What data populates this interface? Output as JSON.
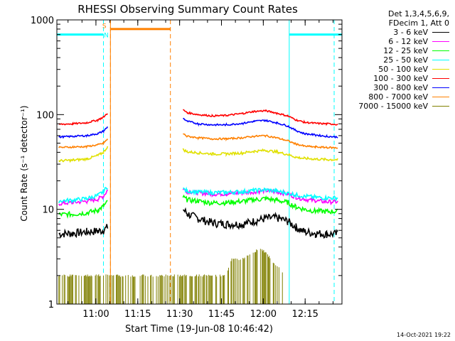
{
  "chart_data": {
    "type": "line",
    "title": "RHESSI Observing Summary Count Rates",
    "xlabel": "Start Time (19-Jun-08 10:46:42)",
    "ylabel": "Count Rate (s⁻¹ detector⁻¹)",
    "yscale": "log",
    "ylim": [
      1,
      1000
    ],
    "xlim_minutes": [
      -0.7,
      101.5
    ],
    "x_ticks": [
      {
        "label": "11:00",
        "minutes": 13.3
      },
      {
        "label": "11:15",
        "minutes": 28.3
      },
      {
        "label": "11:30",
        "minutes": 43.3
      },
      {
        "label": "11:45",
        "minutes": 58.3
      },
      {
        "label": "12:00",
        "minutes": 73.3
      },
      {
        "label": "12:15",
        "minutes": 88.3
      }
    ],
    "y_ticks": [
      {
        "label": "1",
        "value": 1
      },
      {
        "label": "10",
        "value": 10
      },
      {
        "label": "100",
        "value": 100
      },
      {
        "label": "1000",
        "value": 1000
      }
    ],
    "series": [
      {
        "name": "3 - 6 keV",
        "color": "#000000",
        "x": [
          0,
          5,
          10,
          14,
          16,
          17.5,
          18.5,
          44.5,
          46,
          50,
          55,
          60,
          66,
          70,
          74,
          78,
          82,
          85,
          88,
          92,
          96,
          100
        ],
        "y": [
          5.5,
          5.6,
          5.8,
          5.9,
          6.0,
          6.5,
          null,
          10,
          9.0,
          8.0,
          7.2,
          7.0,
          7.0,
          7.5,
          8.0,
          8.2,
          7.5,
          6.5,
          5.8,
          5.6,
          5.5,
          5.5
        ]
      },
      {
        "name": "6 - 12 keV",
        "color": "#ff00ff",
        "x": [
          0,
          5,
          10,
          14,
          16,
          17.5,
          18.5,
          44.5,
          46,
          50,
          55,
          60,
          66,
          70,
          74,
          78,
          82,
          85,
          88,
          92,
          96,
          100
        ],
        "y": [
          11.5,
          11.8,
          12.2,
          12.8,
          13.8,
          16,
          null,
          16.5,
          15.5,
          15,
          14.5,
          14.6,
          15,
          15.3,
          15.8,
          15.3,
          14.5,
          13.5,
          12.8,
          12.3,
          12,
          12
        ]
      },
      {
        "name": "12 - 25 keV",
        "color": "#00ff00",
        "x": [
          0,
          5,
          10,
          14,
          16,
          17.5,
          18.5,
          44.5,
          46,
          50,
          55,
          60,
          66,
          70,
          74,
          78,
          82,
          85,
          88,
          92,
          96,
          100
        ],
        "y": [
          8.8,
          8.9,
          9.2,
          9.8,
          10.8,
          12,
          null,
          13.5,
          12.6,
          12.2,
          11.7,
          11.8,
          12.2,
          12.6,
          13,
          12.5,
          11.8,
          10.6,
          10,
          9.6,
          9.5,
          9.5
        ]
      },
      {
        "name": "25 - 50 keV",
        "color": "#00ffff",
        "x": [
          0,
          5,
          10,
          14,
          16,
          17.5,
          18.5,
          44.5,
          46,
          50,
          55,
          60,
          66,
          70,
          74,
          78,
          82,
          85,
          88,
          92,
          96,
          100
        ],
        "y": [
          12.3,
          12.5,
          13,
          14,
          15.5,
          17.5,
          null,
          16.5,
          15.6,
          15.3,
          15,
          15.1,
          15.4,
          15.8,
          16.1,
          15.6,
          14.9,
          14.2,
          13.8,
          13.4,
          13.2,
          13.2
        ]
      },
      {
        "name": "50 - 100 keV",
        "color": "#e0e000",
        "x": [
          0,
          5,
          10,
          14,
          16,
          17.5,
          18.5,
          44.5,
          46,
          50,
          55,
          60,
          66,
          70,
          74,
          78,
          82,
          85,
          88,
          92,
          96,
          100
        ],
        "y": [
          32.5,
          33,
          34,
          37,
          40,
          46,
          null,
          43,
          40.5,
          39.5,
          38.5,
          38.5,
          39.5,
          41,
          42,
          40.5,
          38,
          35.5,
          34.5,
          34,
          33.5,
          33.5
        ]
      },
      {
        "name": "100 - 300 keV",
        "color": "#ff0000",
        "x": [
          0,
          5,
          10,
          14,
          16,
          17.5,
          18.5,
          44.5,
          46,
          50,
          55,
          60,
          66,
          70,
          74,
          78,
          82,
          85,
          88,
          92,
          96,
          100
        ],
        "y": [
          79,
          80,
          82,
          88,
          94,
          104,
          null,
          112,
          105,
          100,
          97,
          98,
          103,
          108,
          110,
          104,
          97,
          88,
          83,
          81,
          80,
          79
        ]
      },
      {
        "name": "300 - 800 keV",
        "color": "#0000ff",
        "x": [
          0,
          5,
          10,
          14,
          16,
          17.5,
          18.5,
          44.5,
          46,
          50,
          55,
          60,
          66,
          70,
          74,
          78,
          82,
          85,
          88,
          92,
          96,
          100
        ],
        "y": [
          58,
          59,
          60,
          63,
          67,
          74,
          null,
          92,
          85,
          80,
          78,
          78,
          81,
          85,
          87,
          82,
          76,
          68,
          63,
          61,
          59,
          58
        ]
      },
      {
        "name": "800 - 7000 keV",
        "color": "#ff8000",
        "x": [
          0,
          5,
          10,
          14,
          16,
          17.5,
          18.5,
          44.5,
          46,
          50,
          55,
          60,
          66,
          70,
          74,
          78,
          82,
          85,
          88,
          92,
          96,
          100
        ],
        "y": [
          45,
          45.5,
          46,
          48,
          50,
          55,
          null,
          63,
          59,
          57,
          55.5,
          55.5,
          57,
          59,
          60,
          57,
          53,
          49,
          46.5,
          45.5,
          45,
          44.5
        ]
      },
      {
        "name": "7000 - 15000 keV",
        "color": "#808000",
        "x": [
          0,
          5,
          10,
          14,
          16,
          17.5,
          44.5,
          50,
          55,
          60,
          62,
          64,
          66,
          70,
          72,
          74,
          76,
          78,
          82,
          86,
          100
        ],
        "y": [
          2.0,
          2.0,
          2.0,
          2.0,
          2.0,
          2.0,
          2.0,
          2.0,
          2.0,
          2.0,
          3.0,
          3.0,
          3.0,
          3.5,
          4.0,
          3.5,
          3.0,
          2.5,
          2.0,
          null,
          null
        ]
      }
    ],
    "attenuator_state": {
      "color": "#ff8000",
      "segments": [
        {
          "x0": 18.5,
          "x1": 40,
          "value": 800
        }
      ],
      "dashed_bounds_minutes": [
        18.5,
        40
      ]
    },
    "night_bars": {
      "color": "#00ffff",
      "segments": [
        {
          "x0": -0.7,
          "x1": 16,
          "value": 700
        },
        {
          "x0": 82.6,
          "x1": 101.5,
          "value": 700
        }
      ],
      "dashed_bounds_minutes": [
        16,
        98.7
      ],
      "solid_bounds_minutes": [
        -0.7,
        82.6
      ]
    },
    "annotations": [
      {
        "text": "S",
        "x_minutes": 16.3,
        "value": 880,
        "color": "#ff8000"
      },
      {
        "text": "N",
        "x_minutes": 17.0,
        "value": 700,
        "color": "#00ffff"
      }
    ],
    "grid": false,
    "legend_position": "top-right"
  },
  "legend": {
    "header": [
      "Det 1,3,4,5,6,9,",
      "FDecim 1, Att 0"
    ],
    "items": [
      {
        "label": "3 - 6 keV",
        "color": "#000000"
      },
      {
        "label": "6 - 12 keV",
        "color": "#ff00ff"
      },
      {
        "label": "12 - 25 keV",
        "color": "#00ff00"
      },
      {
        "label": "25 - 50 keV",
        "color": "#00ffff"
      },
      {
        "label": "50 - 100 keV",
        "color": "#e0e000"
      },
      {
        "label": "100 - 300 keV",
        "color": "#ff0000"
      },
      {
        "label": "300 - 800 keV",
        "color": "#0000ff"
      },
      {
        "label": "800 - 7000 keV",
        "color": "#ff8000"
      },
      {
        "label": "7000 - 15000 keV",
        "color": "#808000"
      }
    ]
  },
  "timestamp": "14-Oct-2021 19:22"
}
